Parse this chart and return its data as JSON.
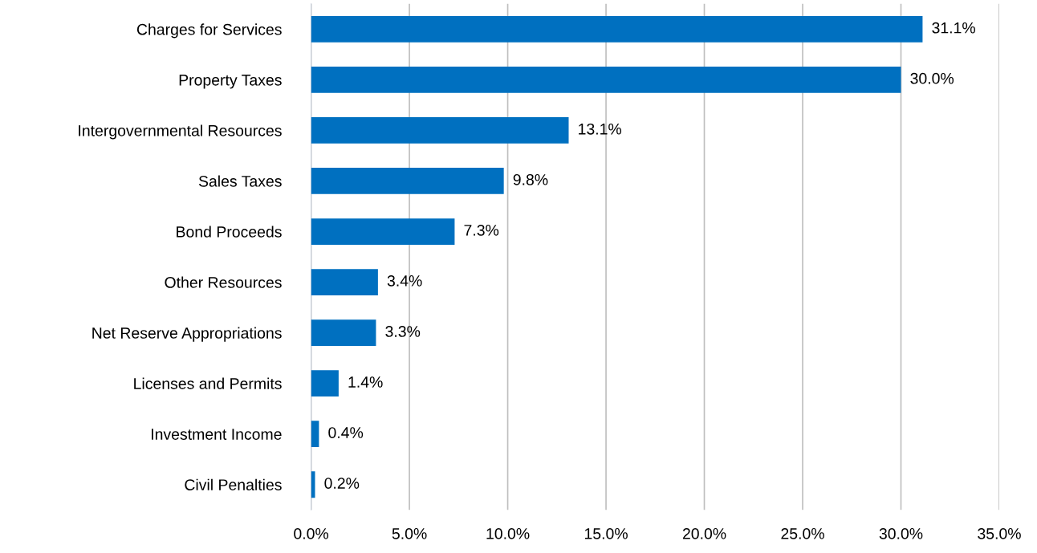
{
  "chart_data": {
    "type": "bar",
    "orientation": "horizontal",
    "categories": [
      "Charges for Services",
      "Property Taxes",
      "Intergovernmental Resources",
      "Sales Taxes",
      "Bond Proceeds",
      "Other Resources",
      "Net Reserve Appropriations",
      "Licenses and Permits",
      "Investment Income",
      "Civil Penalties"
    ],
    "values": [
      31.1,
      30.0,
      13.1,
      9.8,
      7.3,
      3.4,
      3.3,
      1.4,
      0.4,
      0.2
    ],
    "value_labels": [
      "31.1%",
      "30.0%",
      "13.1%",
      "9.8%",
      "7.3%",
      "3.4%",
      "3.3%",
      "1.4%",
      "0.4%",
      "0.2%"
    ],
    "color": "#0070c0",
    "xlim": [
      0,
      35
    ],
    "xticks": [
      {
        "value": 0,
        "label": "0.0%"
      },
      {
        "value": 5,
        "label": "5.0%"
      },
      {
        "value": 10,
        "label": "10.0%"
      },
      {
        "value": 15,
        "label": "15.0%"
      },
      {
        "value": 20,
        "label": "20.0%"
      },
      {
        "value": 25,
        "label": "25.0%"
      },
      {
        "value": 30,
        "label": "30.0%"
      },
      {
        "value": 35,
        "label": "35.0%"
      }
    ],
    "grid": "x",
    "legend": false
  }
}
